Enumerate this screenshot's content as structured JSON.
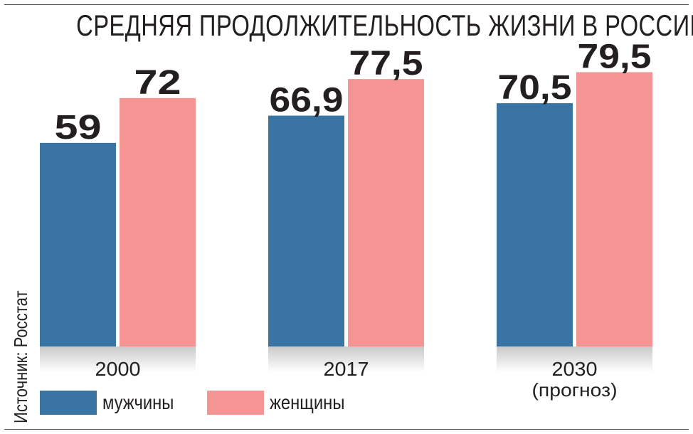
{
  "title": "СРЕДНЯЯ ПРОДОЛЖИТЕЛЬНОСТЬ ЖИЗНИ В РОССИИ",
  "source": "Источник: Росстат",
  "colors": {
    "men": "#3a74a5",
    "women": "#f49594",
    "text": "#231f20"
  },
  "legend": [
    {
      "label": "мужчины",
      "color": "#3a74a5"
    },
    {
      "label": "женщины",
      "color": "#f49594"
    }
  ],
  "chart_data": {
    "type": "bar",
    "title": "СРЕДНЯЯ ПРОДОЛЖИТЕЛЬНОСТЬ ЖИЗНИ В РОССИИ",
    "categories": [
      "2000",
      "2017",
      "2030"
    ],
    "category_notes": [
      "",
      "",
      "(прогноз)"
    ],
    "series": [
      {
        "name": "мужчины",
        "values": [
          59,
          66.9,
          70.5
        ],
        "labels": [
          "59",
          "66,9",
          "70,5"
        ],
        "color": "#3a74a5"
      },
      {
        "name": "женщины",
        "values": [
          72,
          77.5,
          79.5
        ],
        "labels": [
          "72",
          "77,5",
          "79,5"
        ],
        "color": "#f49594"
      }
    ],
    "ylim": [
      0,
      100
    ],
    "grid": false,
    "legend": "bottom-left"
  }
}
